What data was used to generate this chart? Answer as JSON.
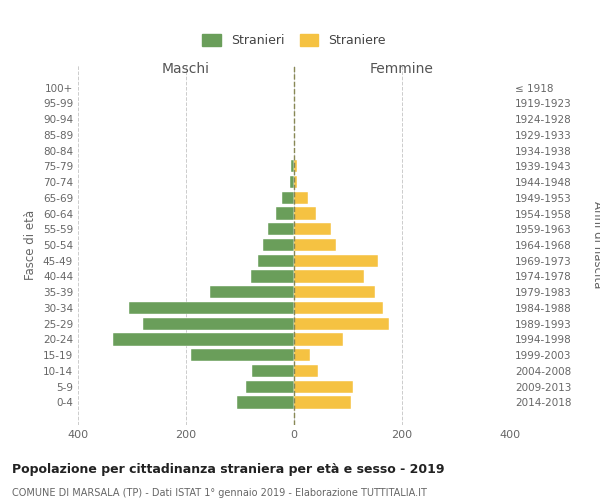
{
  "age_groups": [
    "0-4",
    "5-9",
    "10-14",
    "15-19",
    "20-24",
    "25-29",
    "30-34",
    "35-39",
    "40-44",
    "45-49",
    "50-54",
    "55-59",
    "60-64",
    "65-69",
    "70-74",
    "75-79",
    "80-84",
    "85-89",
    "90-94",
    "95-99",
    "100+"
  ],
  "birth_years": [
    "2014-2018",
    "2009-2013",
    "2004-2008",
    "1999-2003",
    "1994-1998",
    "1989-1993",
    "1984-1988",
    "1979-1983",
    "1974-1978",
    "1969-1973",
    "1964-1968",
    "1959-1963",
    "1954-1958",
    "1949-1953",
    "1944-1948",
    "1939-1943",
    "1934-1938",
    "1929-1933",
    "1924-1928",
    "1919-1923",
    "≤ 1918"
  ],
  "maschi": [
    105,
    88,
    78,
    190,
    335,
    280,
    305,
    155,
    80,
    66,
    58,
    48,
    34,
    22,
    8,
    5,
    0,
    0,
    0,
    0,
    0
  ],
  "femmine": [
    105,
    110,
    45,
    30,
    90,
    175,
    165,
    150,
    130,
    155,
    78,
    68,
    40,
    25,
    5,
    5,
    0,
    0,
    0,
    0,
    0
  ],
  "color_maschi": "#6a9e5a",
  "color_femmine": "#f5c242",
  "title": "Popolazione per cittadinanza straniera per età e sesso - 2019",
  "subtitle": "COMUNE DI MARSALA (TP) - Dati ISTAT 1° gennaio 2019 - Elaborazione TUTTITALIA.IT",
  "xlabel_left": "Maschi",
  "xlabel_right": "Femmine",
  "ylabel_left": "Fasce di età",
  "ylabel_right": "Anni di nascita",
  "legend_maschi": "Stranieri",
  "legend_femmine": "Straniere",
  "xlim": 400,
  "background_color": "#ffffff",
  "grid_color": "#cccccc"
}
